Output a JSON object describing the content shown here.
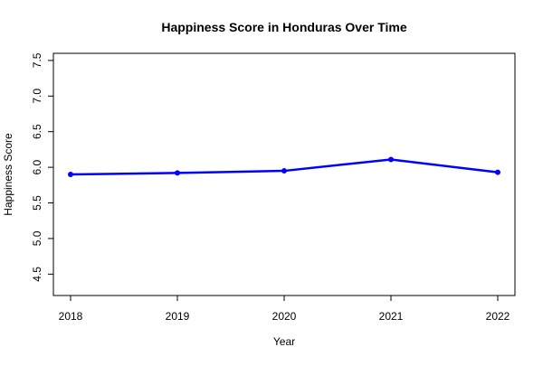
{
  "chart_data": {
    "type": "line",
    "title": "Happiness Score in Honduras Over Time",
    "xlabel": "Year",
    "ylabel": "Happiness Score",
    "x": [
      2018,
      2019,
      2020,
      2021,
      2022
    ],
    "x_tick_labels": [
      "2018",
      "2019",
      "2020",
      "2021",
      "2022"
    ],
    "y_ticks": [
      4.5,
      5.0,
      5.5,
      6.0,
      6.5,
      7.0,
      7.5
    ],
    "y_tick_labels": [
      "4.5",
      "5.0",
      "5.5",
      "6.0",
      "6.5",
      "7.0",
      "7.5"
    ],
    "ylim": [
      4.2,
      7.6
    ],
    "series": [
      {
        "values": [
          5.9,
          5.92,
          5.95,
          6.11,
          5.93
        ],
        "color": "#0000ff"
      }
    ],
    "grid": false,
    "legend": "none"
  }
}
